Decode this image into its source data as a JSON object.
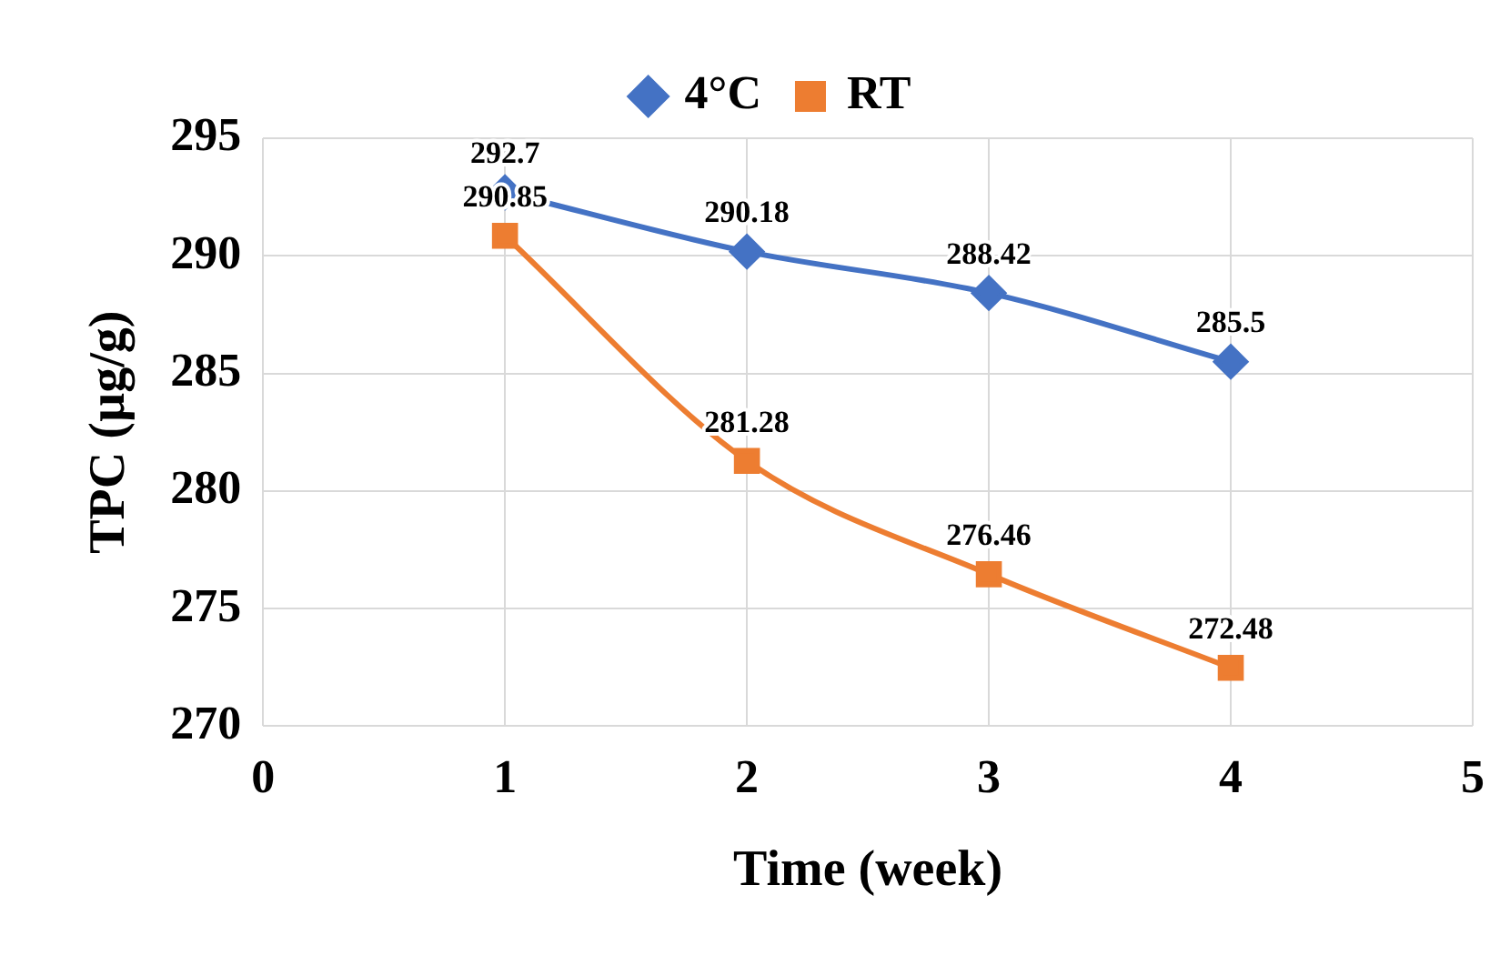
{
  "chart_data": {
    "type": "line",
    "xlabel": "Time (week)",
    "ylabel": "TPC (µg/g)",
    "x": [
      1,
      2,
      3,
      4
    ],
    "series": [
      {
        "name": "4°C",
        "color": "#4472c4",
        "marker": "diamond",
        "values": [
          292.7,
          290.18,
          288.42,
          285.5
        ]
      },
      {
        "name": "RT",
        "color": "#ed7d31",
        "marker": "square",
        "values": [
          290.85,
          281.28,
          276.46,
          272.48
        ]
      }
    ],
    "xlim": [
      0,
      5
    ],
    "xticks": [
      0,
      1,
      2,
      3,
      4,
      5
    ],
    "ylim": [
      270,
      295
    ],
    "yticks": [
      270,
      275,
      280,
      285,
      290,
      295
    ],
    "grid": true,
    "legend": "top",
    "data_labels": true
  }
}
